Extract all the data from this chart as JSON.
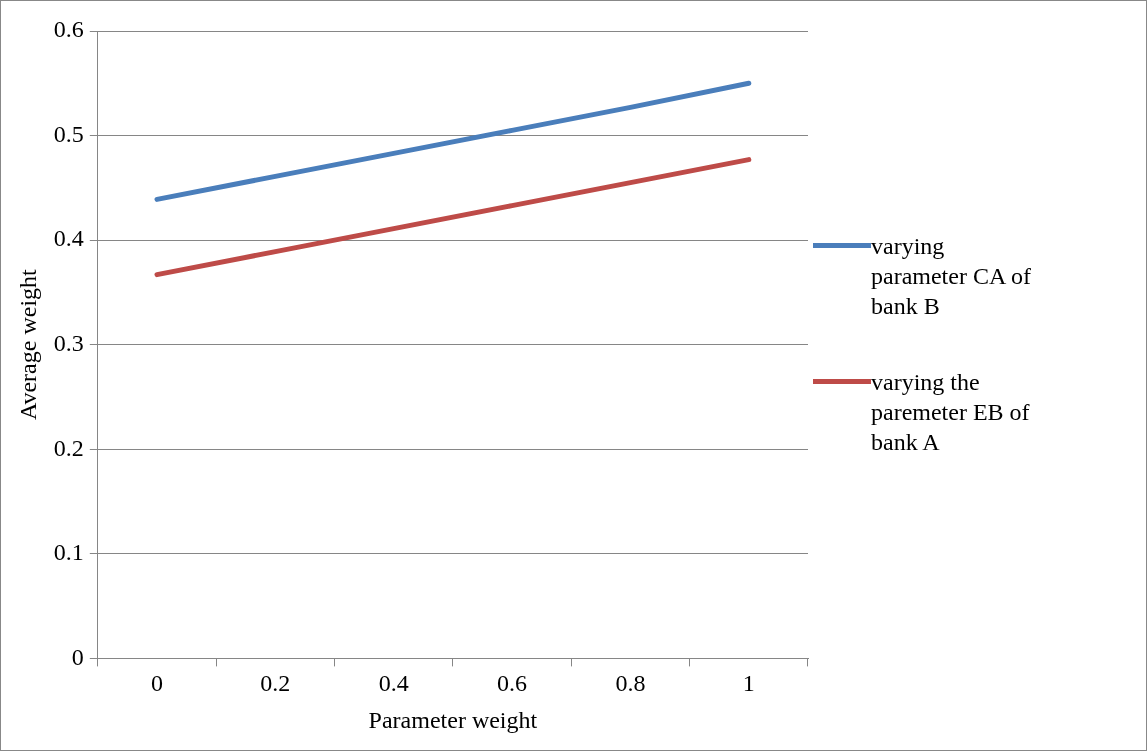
{
  "chart_data": {
    "type": "line",
    "xlabel": "Parameter weight",
    "ylabel": "Average weight",
    "categories": [
      "0",
      "0.2",
      "0.4",
      "0.6",
      "0.8",
      "1"
    ],
    "series": [
      {
        "name": "varying parameter CA of bank B",
        "color": "#4a7ebb",
        "values": [
          0.439,
          0.461,
          0.483,
          0.505,
          0.527,
          0.55
        ]
      },
      {
        "name": "varying the paremeter EB of bank A",
        "color": "#be4b48",
        "values": [
          0.367,
          0.389,
          0.411,
          0.433,
          0.455,
          0.477
        ]
      }
    ],
    "ylim": [
      0,
      0.6
    ],
    "yticks": [
      0,
      0.1,
      0.2,
      0.3,
      0.4,
      0.5,
      0.6
    ],
    "grid": "y",
    "legend": "right",
    "marker": "none",
    "line_style": "solid"
  }
}
